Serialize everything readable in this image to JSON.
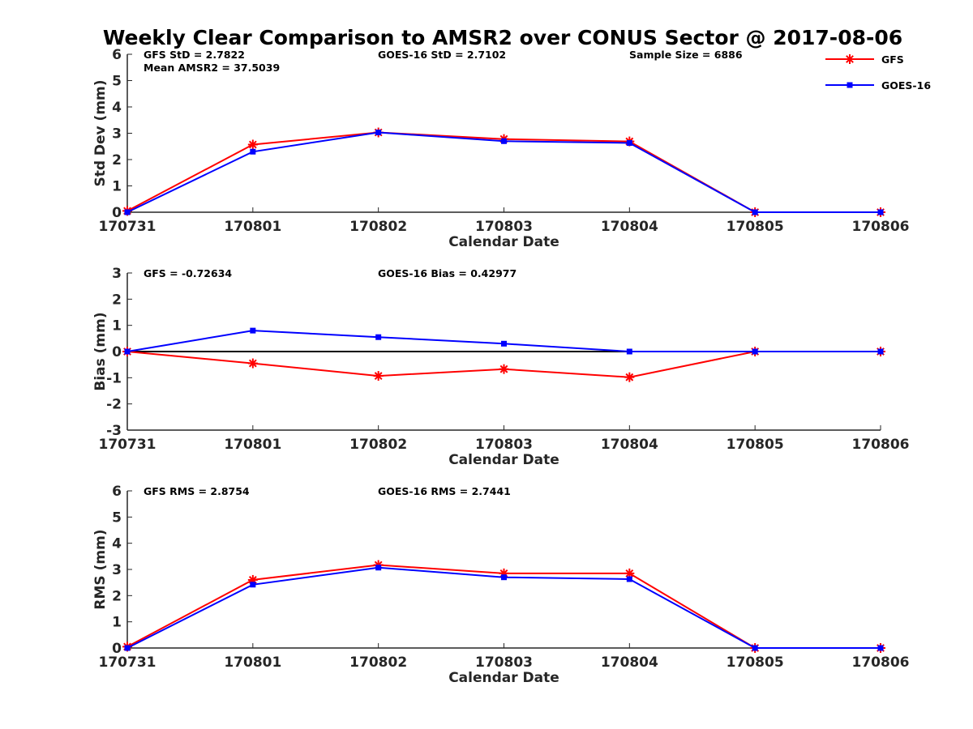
{
  "title": "Weekly Clear Comparison to AMSR2 over CONUS Sector @ 2017-08-06",
  "legend": [
    {
      "name": "GFS",
      "color": "#ff0000",
      "marker": "asterisk"
    },
    {
      "name": "GOES-16",
      "color": "#0000ff",
      "marker": "square"
    }
  ],
  "chart_data": [
    {
      "type": "line",
      "ylabel": "Std Dev (mm)",
      "xlabel": "Calendar Date",
      "ylim": [
        0,
        6
      ],
      "yticks": [
        "0",
        "1",
        "2",
        "3",
        "4",
        "5",
        "6"
      ],
      "categories": [
        "170731",
        "170801",
        "170802",
        "170803",
        "170804",
        "170805",
        "170806"
      ],
      "zero_line": false,
      "annotations": [
        {
          "text": "GFS StD = 2.7822",
          "col": 0,
          "row": 0
        },
        {
          "text": "Mean AMSR2 = 37.5039",
          "col": 0,
          "row": 1
        },
        {
          "text": "GOES-16 StD = 2.7102",
          "col": 2,
          "row": 0
        },
        {
          "text": "Sample Size = 6886",
          "col": 4,
          "row": 0
        }
      ],
      "series": [
        {
          "name": "GFS",
          "values": [
            0.05,
            2.57,
            3.03,
            2.78,
            2.69,
            0.0,
            0.0
          ]
        },
        {
          "name": "GOES-16",
          "values": [
            0.0,
            2.3,
            3.03,
            2.7,
            2.63,
            0.0,
            0.0
          ]
        }
      ]
    },
    {
      "type": "line",
      "ylabel": "Bias (mm)",
      "xlabel": "Calendar Date",
      "ylim": [
        -3,
        3
      ],
      "yticks": [
        "-3",
        "-2",
        "-1",
        "0",
        "1",
        "2",
        "3"
      ],
      "categories": [
        "170731",
        "170801",
        "170802",
        "170803",
        "170804",
        "170805",
        "170806"
      ],
      "zero_line": true,
      "annotations": [
        {
          "text": "GFS = -0.72634",
          "col": 0,
          "row": 0
        },
        {
          "text": "GOES-16 Bias  = 0.42977",
          "col": 2,
          "row": 0
        }
      ],
      "series": [
        {
          "name": "GFS",
          "values": [
            0.0,
            -0.45,
            -0.93,
            -0.67,
            -0.98,
            0.0,
            0.0
          ]
        },
        {
          "name": "GOES-16",
          "values": [
            0.0,
            0.8,
            0.55,
            0.3,
            0.0,
            0.0,
            0.0
          ]
        }
      ]
    },
    {
      "type": "line",
      "ylabel": "RMS (mm)",
      "xlabel": "Calendar Date",
      "ylim": [
        0,
        6
      ],
      "yticks": [
        "0",
        "1",
        "2",
        "3",
        "4",
        "5",
        "6"
      ],
      "categories": [
        "170731",
        "170801",
        "170802",
        "170803",
        "170804",
        "170805",
        "170806"
      ],
      "zero_line": false,
      "annotations": [
        {
          "text": "GFS RMS = 2.8754",
          "col": 0,
          "row": 0
        },
        {
          "text": "GOES-16 RMS = 2.7441",
          "col": 2,
          "row": 0
        }
      ],
      "series": [
        {
          "name": "GFS",
          "values": [
            0.05,
            2.6,
            3.17,
            2.85,
            2.85,
            0.0,
            0.0
          ]
        },
        {
          "name": "GOES-16",
          "values": [
            0.0,
            2.42,
            3.07,
            2.7,
            2.63,
            0.0,
            0.0
          ]
        }
      ]
    }
  ]
}
